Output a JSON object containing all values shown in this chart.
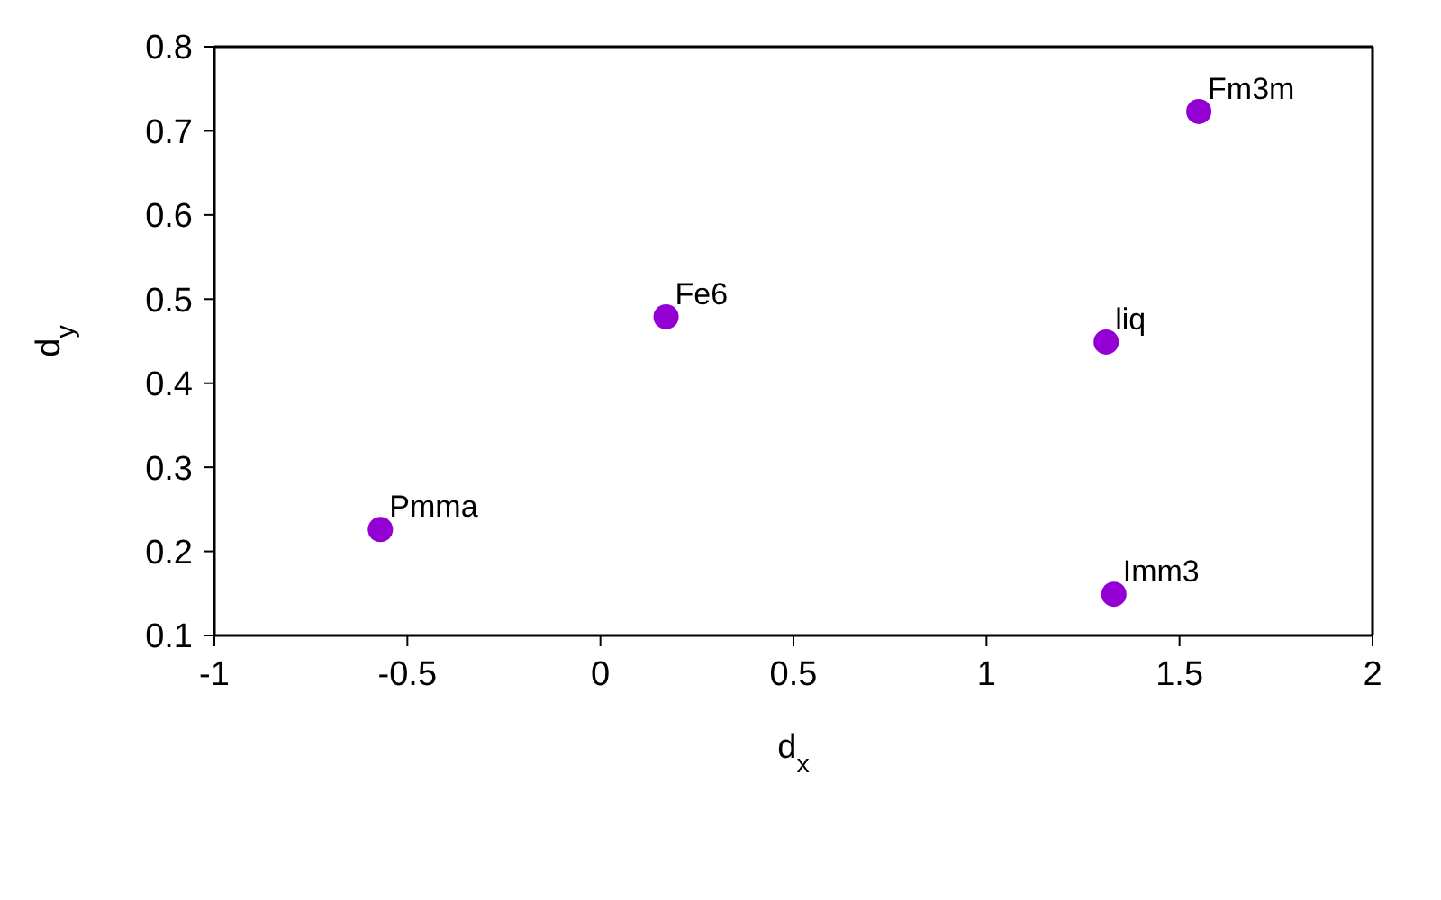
{
  "chart_data": {
    "type": "scatter",
    "xlabel": "d$_{x}$",
    "ylabel": "d$_{y}$",
    "x": [
      -0.57,
      0.17,
      1.31,
      1.55,
      1.33
    ],
    "series": [
      {
        "color": "#9400d3",
        "values": [
          0.226,
          0.479,
          0.449,
          0.723,
          0.149
        ]
      }
    ],
    "xlim": [
      -1,
      2
    ],
    "xticks": [
      -1,
      -0.5,
      0,
      0.5,
      1,
      1.5,
      2
    ],
    "ylim": [
      0.1,
      0.8
    ],
    "yticks": [
      0.1,
      0.2,
      0.3,
      0.4,
      0.5,
      0.6,
      0.7,
      0.8
    ],
    "grid": false,
    "legend": false,
    "marker": "circle",
    "annotations": [
      {
        "text": "Pmma",
        "x": -0.57,
        "y": 0.226
      },
      {
        "text": "Fe6",
        "x": 0.17,
        "y": 0.479
      },
      {
        "text": "liq",
        "x": 1.31,
        "y": 0.449
      },
      {
        "text": "Fm3m",
        "x": 1.55,
        "y": 0.723
      },
      {
        "text": "Imm3",
        "x": 1.33,
        "y": 0.149
      }
    ]
  }
}
